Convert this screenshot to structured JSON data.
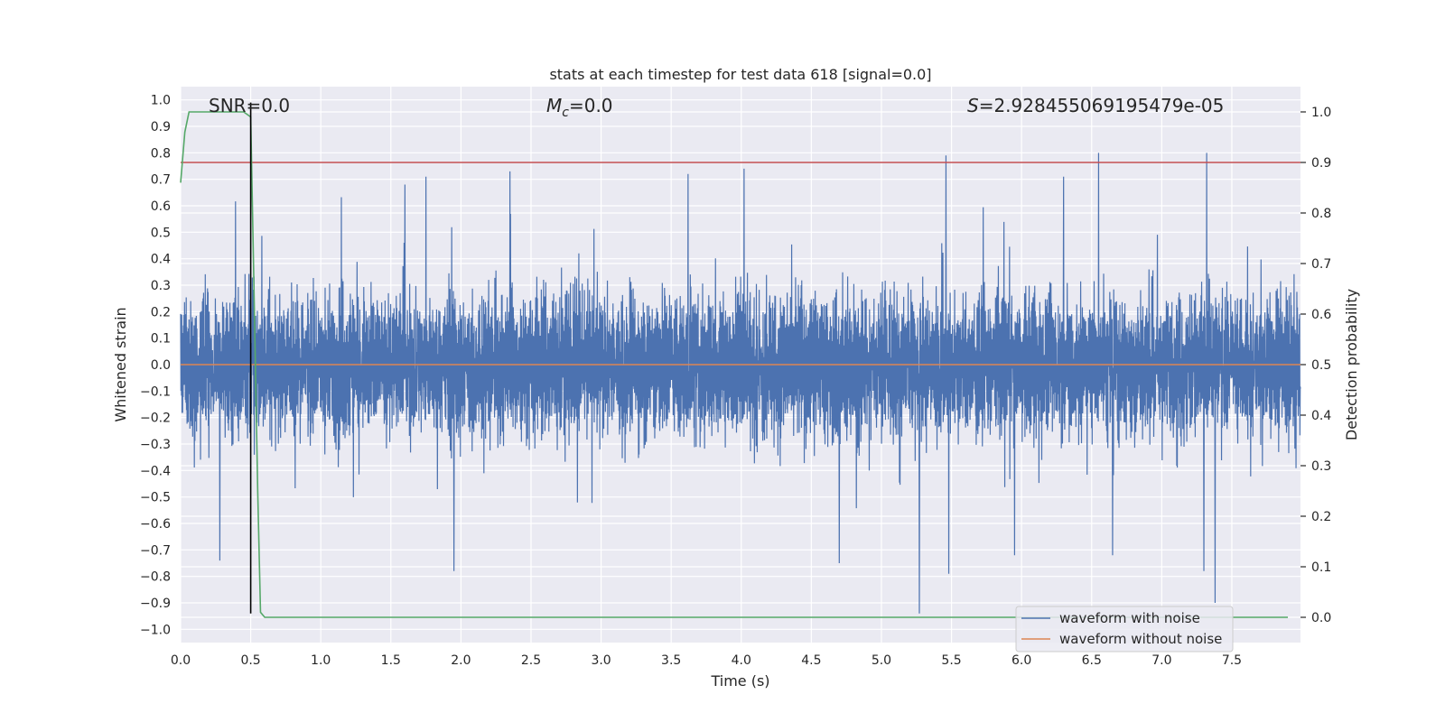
{
  "chart_data": {
    "type": "line",
    "title": "stats at each timestep for test data 618 [signal=0.0]",
    "xlabel": "Time (s)",
    "ylabel": "Whitened strain",
    "y2label": "Detection probability",
    "xlim": [
      0.0,
      7.99
    ],
    "ylim": [
      -1.05,
      1.05
    ],
    "y2lim": [
      -0.05,
      1.05
    ],
    "xticks": [
      "0.0",
      "0.5",
      "1.0",
      "1.5",
      "2.0",
      "2.5",
      "3.0",
      "3.5",
      "4.0",
      "4.5",
      "5.0",
      "5.5",
      "6.0",
      "6.5",
      "7.0",
      "7.5"
    ],
    "yticks": [
      "1.0",
      "0.9",
      "0.8",
      "0.7",
      "0.6",
      "0.5",
      "0.4",
      "0.3",
      "0.2",
      "0.1",
      "0.0",
      "−0.1",
      "−0.2",
      "−0.3",
      "−0.4",
      "−0.5",
      "−0.6",
      "−0.7",
      "−0.8",
      "−0.9",
      "−1.0"
    ],
    "y2ticks": [
      "1.0",
      "0.9",
      "0.8",
      "0.7",
      "0.6",
      "0.5",
      "0.4",
      "0.3",
      "0.2",
      "0.1",
      "0.0"
    ],
    "annotations": {
      "snr": "SNR=0.0",
      "mc_symbol": "M",
      "mc_sub": "c",
      "mc_value": "=0.0",
      "s_symbol": "S",
      "s_value": "=2.928455069195479e-05"
    },
    "legend": {
      "location": "lower right",
      "entries": [
        "waveform with noise",
        "waveform without noise"
      ]
    },
    "series": [
      {
        "name": "waveform with noise",
        "axis": "left",
        "description": "whitened noisy strain, dense random oscillation",
        "envelope_typical": [
          -0.35,
          0.45
        ],
        "peaks_max": [
          {
            "x": 5.46,
            "y": 0.79
          },
          {
            "x": 6.55,
            "y": 0.8
          },
          {
            "x": 7.32,
            "y": 0.8
          },
          {
            "x": 4.02,
            "y": 0.74
          },
          {
            "x": 2.35,
            "y": 0.73
          },
          {
            "x": 1.75,
            "y": 0.71
          },
          {
            "x": 3.62,
            "y": 0.72
          },
          {
            "x": 6.3,
            "y": 0.71
          },
          {
            "x": 1.6,
            "y": 0.68
          }
        ],
        "peaks_min": [
          {
            "x": 5.27,
            "y": -0.94
          },
          {
            "x": 7.38,
            "y": -0.9
          },
          {
            "x": 5.48,
            "y": -0.79
          },
          {
            "x": 1.95,
            "y": -0.78
          },
          {
            "x": 0.28,
            "y": -0.74
          },
          {
            "x": 4.7,
            "y": -0.75
          },
          {
            "x": 5.95,
            "y": -0.72
          },
          {
            "x": 7.3,
            "y": -0.78
          },
          {
            "x": 6.65,
            "y": -0.72
          }
        ],
        "color": "#4c72b0"
      },
      {
        "name": "waveform without noise",
        "axis": "left",
        "x": [
          0.0,
          7.99
        ],
        "values": [
          0.0,
          0.0
        ],
        "color": "#dd8452"
      },
      {
        "name": "detection probability",
        "axis": "right",
        "x": [
          0.0,
          0.03,
          0.06,
          0.15,
          0.3,
          0.45,
          0.5,
          0.52,
          0.55,
          0.57,
          0.6,
          0.65,
          7.9
        ],
        "values": [
          0.86,
          0.96,
          1.0,
          1.0,
          1.0,
          1.0,
          0.99,
          0.7,
          0.25,
          0.01,
          0.0,
          0.0,
          0.0
        ],
        "color": "#55a868"
      },
      {
        "name": "threshold",
        "axis": "right",
        "x": [
          0.0,
          7.99
        ],
        "values": [
          0.9,
          0.9
        ],
        "color": "#c44e52"
      },
      {
        "name": "peak time marker",
        "axis": "left",
        "x": [
          0.5,
          0.5
        ],
        "values": [
          -0.94,
          0.99
        ],
        "color": "#000000"
      }
    ]
  }
}
